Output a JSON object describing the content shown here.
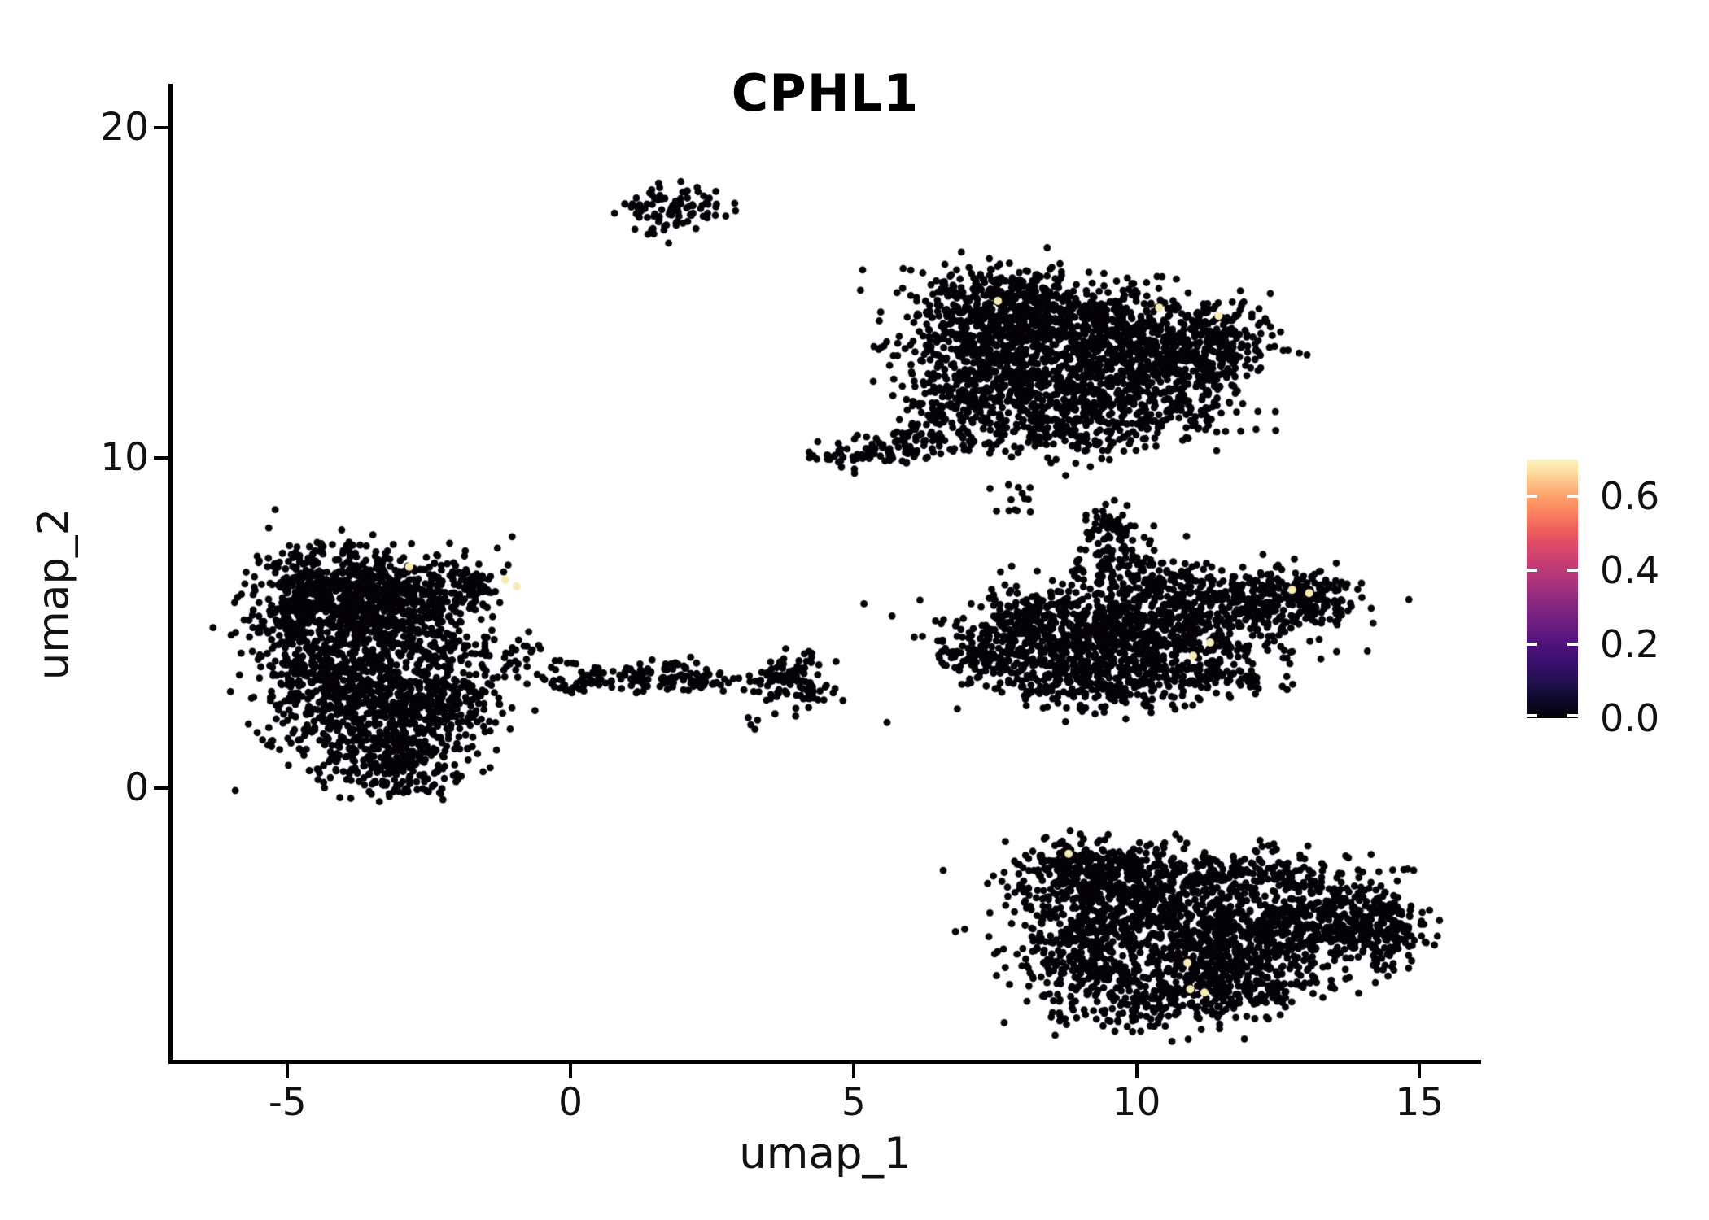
{
  "figure": {
    "background": "#ffffff"
  },
  "chart_data": {
    "type": "scatter",
    "title": "CPHL1",
    "xlabel": "umap_1",
    "ylabel": "umap_2",
    "xlim": [
      -7.06,
      16.06
    ],
    "ylim": [
      -8.24,
      21.33
    ],
    "xtick_labels": [
      "-5",
      "0",
      "5",
      "10",
      "15"
    ],
    "xtick_values": [
      -5,
      0,
      5,
      10,
      15
    ],
    "ytick_labels": [
      "20",
      "10",
      "0"
    ],
    "ytick_values": [
      20,
      10,
      0
    ],
    "grid": false,
    "legend_position": "right",
    "point_color": "#050308",
    "highlight_color": "#f6ecb2",
    "point_radius": 4.4,
    "highlight_radius": 5,
    "colorbar": {
      "tick_labels": [
        "0.6",
        "0.4",
        "0.2",
        "0.0"
      ],
      "tick_values": [
        0.6,
        0.4,
        0.2,
        0.0
      ],
      "vmin": 0.0,
      "vmax": 0.7,
      "colormap": "magma",
      "stops": [
        {
          "offset": 0,
          "color": "#000004"
        },
        {
          "offset": 7,
          "color": "#0d0829"
        },
        {
          "offset": 14,
          "color": "#21114e"
        },
        {
          "offset": 21,
          "color": "#380f6d"
        },
        {
          "offset": 27,
          "color": "#4a1079"
        },
        {
          "offset": 33,
          "color": "#611a80"
        },
        {
          "offset": 40,
          "color": "#782282"
        },
        {
          "offset": 47,
          "color": "#932b80"
        },
        {
          "offset": 54,
          "color": "#b03679"
        },
        {
          "offset": 61,
          "color": "#ca3e72"
        },
        {
          "offset": 68,
          "color": "#e14d66"
        },
        {
          "offset": 74,
          "color": "#f2655b"
        },
        {
          "offset": 80,
          "color": "#fc8460"
        },
        {
          "offset": 86,
          "color": "#fda26b"
        },
        {
          "offset": 91,
          "color": "#fec287"
        },
        {
          "offset": 96,
          "color": "#fde2a5"
        },
        {
          "offset": 100,
          "color": "#fbf2bc"
        }
      ]
    },
    "clusters": [
      {
        "name": "top-small",
        "blobs": [
          [
            1.7,
            17.75,
            0.5,
            0.3,
            60
          ],
          [
            1.5,
            17.05,
            0.22,
            0.25,
            14
          ],
          [
            2.1,
            17.4,
            0.3,
            0.3,
            20
          ]
        ]
      },
      {
        "name": "upper-right",
        "blobs": [
          [
            7.4,
            14.2,
            0.9,
            0.75,
            450
          ],
          [
            9.2,
            13.9,
            1.0,
            0.75,
            500
          ],
          [
            10.8,
            13.0,
            0.75,
            0.8,
            300
          ],
          [
            8.2,
            12.6,
            1.0,
            0.8,
            400
          ],
          [
            9.9,
            11.7,
            0.9,
            0.65,
            280
          ],
          [
            7.0,
            11.9,
            0.6,
            0.7,
            180
          ],
          [
            8.6,
            10.9,
            0.8,
            0.45,
            160
          ],
          [
            11.4,
            13.6,
            0.45,
            0.6,
            130
          ],
          [
            6.3,
            10.6,
            0.5,
            0.4,
            80
          ],
          [
            5.4,
            10.2,
            0.45,
            0.25,
            50
          ],
          [
            4.85,
            10.0,
            0.3,
            0.1,
            25
          ],
          [
            8.0,
            15.0,
            0.8,
            0.3,
            80
          ]
        ]
      },
      {
        "name": "tiny-mid",
        "blobs": [
          [
            7.85,
            8.75,
            0.18,
            0.28,
            13
          ]
        ]
      },
      {
        "name": "mid-right",
        "blobs": [
          [
            8.9,
            4.4,
            1.1,
            0.75,
            500
          ],
          [
            10.8,
            4.9,
            1.0,
            0.65,
            400
          ],
          [
            12.4,
            5.6,
            0.7,
            0.5,
            220
          ],
          [
            13.2,
            5.85,
            0.35,
            0.3,
            80
          ],
          [
            9.6,
            7.4,
            0.3,
            0.55,
            60
          ],
          [
            9.55,
            8.0,
            0.2,
            0.25,
            20
          ],
          [
            9.9,
            6.4,
            0.7,
            0.5,
            120
          ],
          [
            10.9,
            6.1,
            0.5,
            0.35,
            70
          ],
          [
            7.6,
            4.0,
            0.5,
            0.45,
            110
          ],
          [
            7.05,
            4.05,
            0.3,
            0.12,
            18
          ],
          [
            9.3,
            3.1,
            0.9,
            0.4,
            170
          ],
          [
            11.0,
            3.4,
            0.8,
            0.4,
            130
          ],
          [
            8.3,
            5.3,
            0.5,
            0.5,
            120
          ]
        ]
      },
      {
        "name": "left-big",
        "blobs": [
          [
            -4.1,
            6.0,
            0.75,
            0.75,
            500
          ],
          [
            -2.9,
            5.6,
            0.6,
            0.6,
            250
          ],
          [
            -3.4,
            4.4,
            0.85,
            0.7,
            350
          ],
          [
            -4.4,
            3.4,
            0.6,
            0.6,
            200
          ],
          [
            -3.5,
            2.0,
            0.9,
            0.8,
            500
          ],
          [
            -2.4,
            2.6,
            0.6,
            0.55,
            200
          ],
          [
            -3.1,
            0.6,
            0.6,
            0.45,
            160
          ],
          [
            -1.85,
            6.2,
            0.4,
            0.5,
            90
          ],
          [
            -4.9,
            5.2,
            0.3,
            0.8,
            120
          ],
          [
            -1.4,
            3.9,
            0.5,
            0.4,
            40
          ],
          [
            -0.6,
            3.4,
            0.5,
            0.3,
            25
          ]
        ]
      },
      {
        "name": "mid-string",
        "blobs": [
          [
            0.9,
            3.3,
            0.55,
            0.2,
            50
          ],
          [
            1.9,
            3.45,
            0.45,
            0.22,
            60
          ],
          [
            2.6,
            3.2,
            0.3,
            0.15,
            25
          ],
          [
            3.8,
            3.3,
            0.33,
            0.4,
            80
          ],
          [
            4.3,
            2.8,
            0.2,
            0.3,
            20
          ],
          [
            3.2,
            1.95,
            0.08,
            0.1,
            4
          ],
          [
            0.1,
            3.3,
            0.3,
            0.25,
            15
          ]
        ]
      },
      {
        "name": "bottom-right",
        "blobs": [
          [
            9.4,
            -3.3,
            0.8,
            0.75,
            400
          ],
          [
            10.8,
            -4.4,
            1.1,
            0.9,
            550
          ],
          [
            12.6,
            -4.2,
            0.9,
            0.75,
            400
          ],
          [
            13.9,
            -4.0,
            0.5,
            0.6,
            180
          ],
          [
            14.4,
            -4.5,
            0.3,
            0.5,
            90
          ],
          [
            11.3,
            -2.5,
            1.2,
            0.45,
            220
          ],
          [
            10.3,
            -6.3,
            0.9,
            0.55,
            220
          ],
          [
            8.9,
            -5.2,
            0.55,
            0.75,
            200
          ],
          [
            12.0,
            -5.8,
            0.8,
            0.5,
            180
          ],
          [
            9.0,
            -2.3,
            0.5,
            0.4,
            120
          ]
        ]
      }
    ],
    "highlight_points": [
      [
        7.55,
        14.75
      ],
      [
        10.4,
        14.55
      ],
      [
        11.45,
        14.3
      ],
      [
        12.75,
        6.0
      ],
      [
        13.05,
        5.9
      ],
      [
        11.3,
        4.4
      ],
      [
        11.0,
        4.0
      ],
      [
        -1.15,
        6.3
      ],
      [
        -0.95,
        6.1
      ],
      [
        -2.85,
        6.7
      ],
      [
        8.8,
        -2.0
      ],
      [
        10.9,
        -5.3
      ],
      [
        10.95,
        -6.1
      ],
      [
        11.2,
        -6.2
      ]
    ]
  }
}
